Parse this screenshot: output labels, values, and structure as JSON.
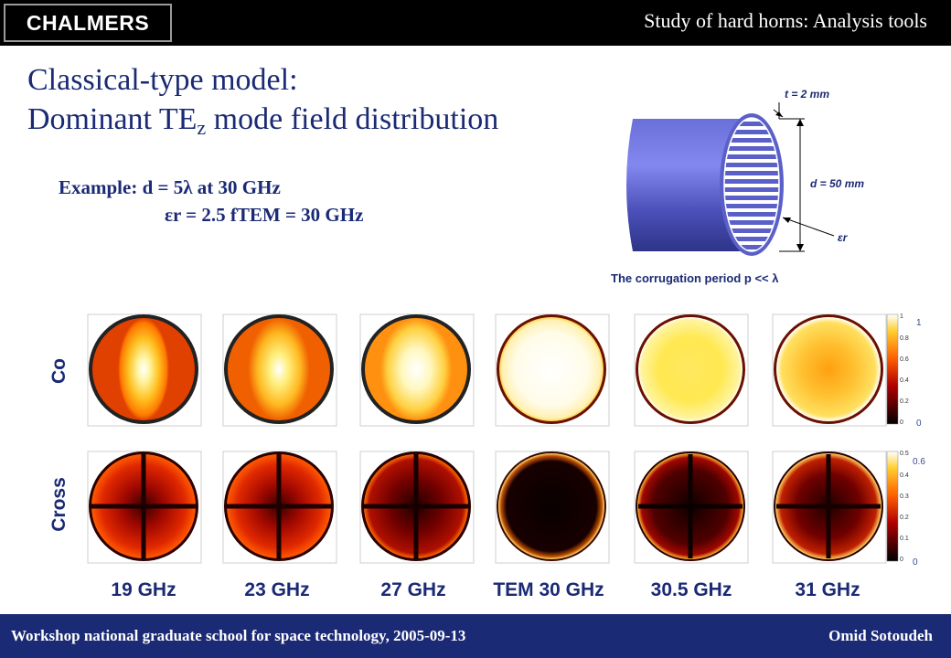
{
  "header": {
    "logo_text": "CHALMERS",
    "title": "Study of hard horns: Analysis tools"
  },
  "slide": {
    "title_line1": "Classical-type model:",
    "title_line2_main": "Dominant TE",
    "title_line2_sub": "z",
    "title_line2_end": " mode field distribution",
    "example_line1": "Example: d = 5λ at 30 GHz",
    "example_line2": "εr = 2.5  fTEM = 30 GHz"
  },
  "diagram": {
    "t_label": "t = 2 mm",
    "d_label": "d = 50 mm",
    "eps_label": "εr",
    "corrugation_note": "The corrugation period p << λ"
  },
  "plots": {
    "row_co": "Co",
    "row_cross": "Cross",
    "frequencies": [
      "19 GHz",
      "23 GHz",
      "27 GHz",
      "TEM 30 GHz",
      "30.5 GHz",
      "31 GHz"
    ],
    "co_colorbar_ticks": [
      "1",
      "0.8",
      "0.6",
      "0.4",
      "0.2",
      "0"
    ],
    "co_colorbar_side": [
      "1",
      "0"
    ],
    "cross_colorbar_ticks": [
      "0.5",
      "0.4",
      "0.3",
      "0.2",
      "0.1",
      "0"
    ],
    "cross_colorbar_side": [
      "0.6",
      "0"
    ],
    "colors": {
      "dark": "#3a0000",
      "red": "#c81000",
      "orange": "#ff8a00",
      "yellow": "#ffe840",
      "white": "#ffffff"
    }
  },
  "footer": {
    "left": "Workshop national graduate school for space technology, 2005-09-13",
    "right": "Omid Sotoudeh"
  }
}
